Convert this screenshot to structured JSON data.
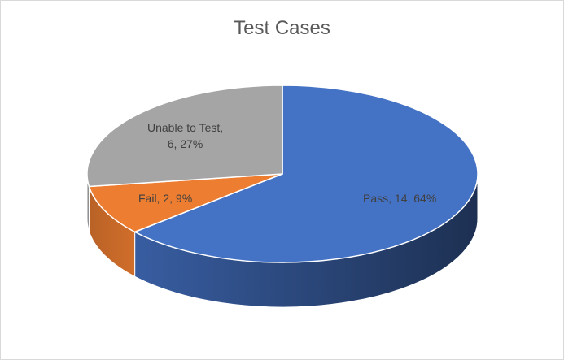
{
  "chart_data": {
    "type": "pie",
    "title": "Test Cases",
    "style": "3d",
    "legend": "none",
    "series": [
      {
        "slices": [
          {
            "name": "Pass",
            "value": 14,
            "percent": 64,
            "color": "#4472C4",
            "label": "Pass, 14, 64%"
          },
          {
            "name": "Fail",
            "value": 2,
            "percent": 9,
            "color": "#ED7D31",
            "label": "Fail, 2, 9%"
          },
          {
            "name": "Unable to Test",
            "value": 6,
            "percent": 27,
            "color": "#A5A5A5",
            "label": "Unable to Test,\n6, 27%"
          }
        ]
      }
    ]
  }
}
